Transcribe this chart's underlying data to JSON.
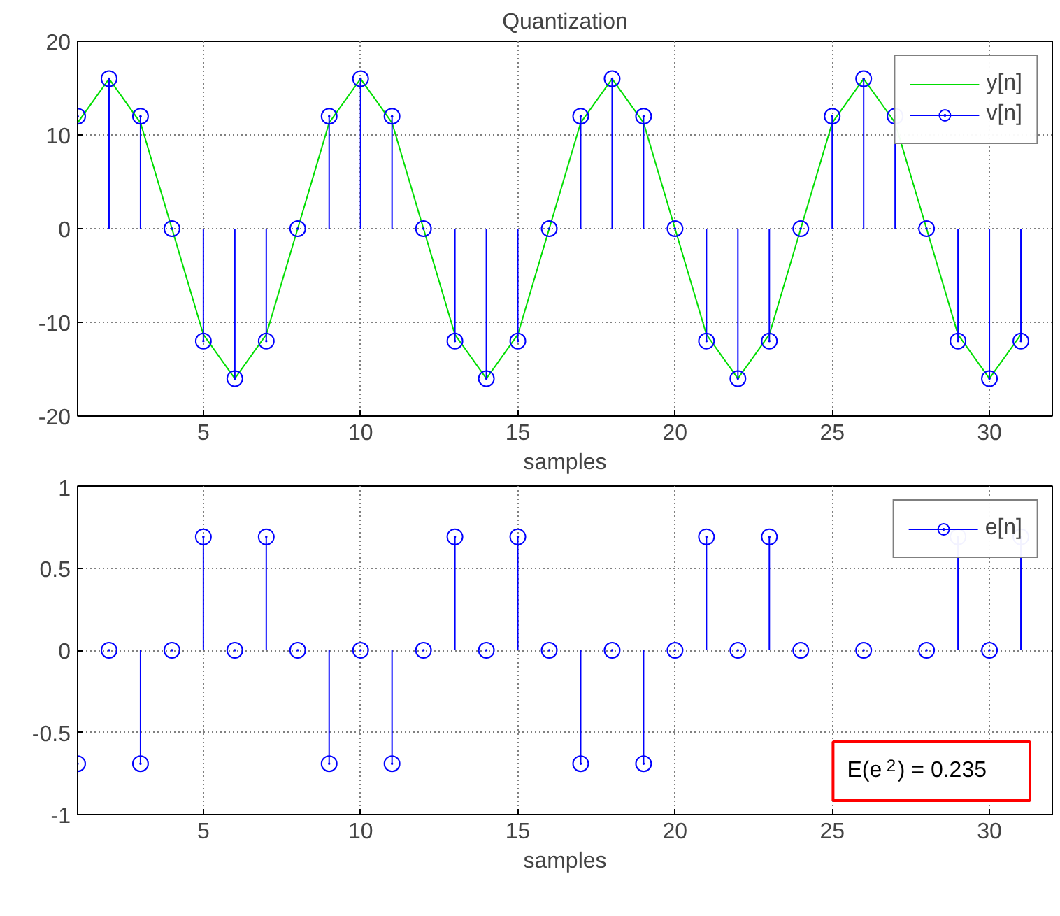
{
  "chart_data": [
    {
      "type": "line",
      "title": "Quantization",
      "xlabel": "samples",
      "x": [
        1,
        2,
        3,
        4,
        5,
        6,
        7,
        8,
        9,
        10,
        11,
        12,
        13,
        14,
        15,
        16,
        17,
        18,
        19,
        20,
        21,
        22,
        23,
        24,
        25,
        26,
        27,
        28,
        29,
        30,
        31
      ],
      "xlim": [
        1,
        32
      ],
      "xticks": [
        5,
        10,
        15,
        20,
        25,
        30
      ],
      "ylim": [
        -20,
        20
      ],
      "yticks": [
        -20,
        -10,
        0,
        10,
        20
      ],
      "grid": true,
      "legend": "top right",
      "series": [
        {
          "name": "y[n]",
          "color": "#00dd00",
          "values": [
            11.3,
            16,
            11.3,
            0,
            -11.3,
            -16,
            -11.3,
            0,
            11.3,
            16,
            11.3,
            0,
            -11.3,
            -16,
            -11.3,
            0,
            11.3,
            16,
            11.3,
            0,
            -11.3,
            -16,
            -11.3,
            0,
            11.3,
            16,
            11.3,
            0,
            -11.3,
            -16,
            -11.3
          ]
        },
        {
          "name": "v[n]",
          "type": "lollipop",
          "marker": "circle",
          "color": "#0000ff",
          "values": [
            12,
            16,
            12,
            0,
            -12,
            -16,
            -12,
            0,
            12,
            16,
            12,
            0,
            -12,
            -16,
            -12,
            0,
            12,
            16,
            12,
            0,
            -12,
            -16,
            -12,
            0,
            12,
            16,
            12,
            0,
            -12,
            -16,
            -12
          ]
        }
      ]
    },
    {
      "type": "lollipop",
      "xlabel": "samples",
      "x": [
        1,
        2,
        3,
        4,
        5,
        6,
        7,
        8,
        9,
        10,
        11,
        12,
        13,
        14,
        15,
        16,
        17,
        18,
        19,
        20,
        21,
        22,
        23,
        24,
        25,
        26,
        27,
        28,
        29,
        30,
        31
      ],
      "xlim": [
        1,
        32
      ],
      "xticks": [
        5,
        10,
        15,
        20,
        25,
        30
      ],
      "ylim": [
        -1,
        1
      ],
      "yticks": [
        -1,
        -0.5,
        0,
        0.5,
        1
      ],
      "grid": true,
      "legend": "top right",
      "annotations": [
        "E(e$^{2}$) = 0.235"
      ],
      "series": [
        {
          "name": "e[n]",
          "marker": "circle",
          "color": "#0000ff",
          "values": [
            -0.69,
            0,
            -0.69,
            0,
            0.69,
            0,
            0.69,
            0,
            -0.69,
            0,
            -0.69,
            0,
            0.69,
            0,
            0.69,
            0,
            -0.69,
            0,
            -0.69,
            0,
            0.69,
            0,
            0.69,
            0,
            null,
            0,
            null,
            0,
            0.69,
            0,
            0.69
          ]
        }
      ]
    }
  ]
}
